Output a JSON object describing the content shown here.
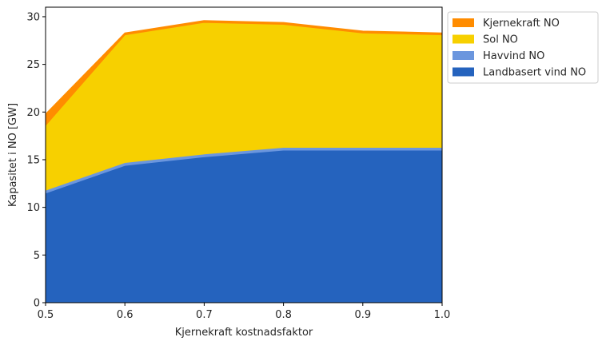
{
  "chart_data": {
    "type": "area",
    "stacked": true,
    "xlabel": "Kjernekraft kostnadsfaktor",
    "ylabel": "Kapasitet i NO [GW]",
    "x": [
      0.5,
      0.6,
      0.7,
      0.8,
      0.9,
      1.0
    ],
    "xlim": [
      0.5,
      1.0
    ],
    "ylim": [
      0,
      31
    ],
    "xticks": [
      "0.5",
      "0.6",
      "0.7",
      "0.8",
      "0.9",
      "1.0"
    ],
    "yticks": [
      "0",
      "5",
      "10",
      "15",
      "20",
      "25",
      "30"
    ],
    "grid": false,
    "legend_position": "outside-top-right",
    "series": [
      {
        "name": "Landbasert vind NO",
        "color": "#2563be",
        "values": [
          11.5,
          14.4,
          15.3,
          16.0,
          16.0,
          16.0
        ]
      },
      {
        "name": "Havvind NO",
        "color": "#6b96de",
        "values": [
          0.3,
          0.3,
          0.3,
          0.3,
          0.3,
          0.3
        ]
      },
      {
        "name": "Sol NO",
        "color": "#f7d000",
        "values": [
          6.8,
          13.4,
          13.8,
          12.9,
          12.0,
          11.8
        ]
      },
      {
        "name": "Kjernekraft NO",
        "color": "#ff8c00",
        "values": [
          1.2,
          0.2,
          0.2,
          0.2,
          0.2,
          0.2
        ]
      }
    ],
    "legend_order": [
      3,
      2,
      1,
      0
    ]
  }
}
